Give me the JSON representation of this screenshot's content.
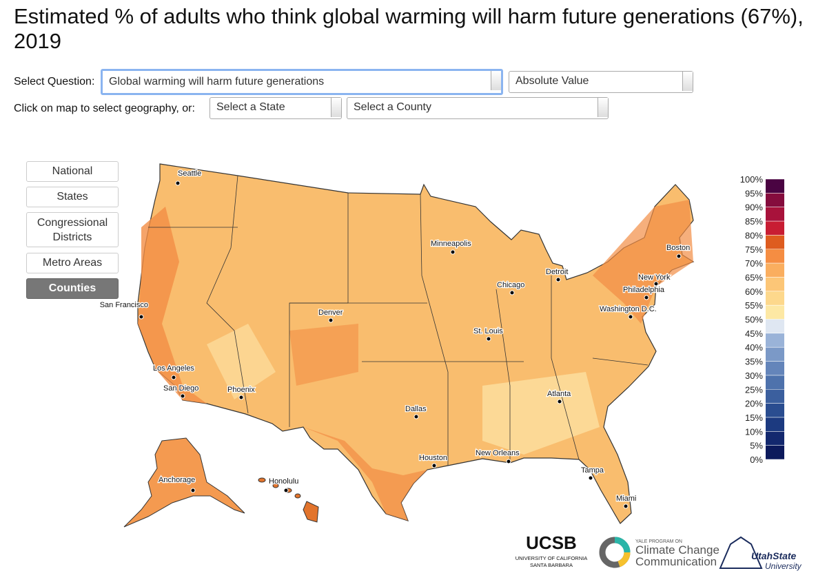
{
  "header": {
    "title": "Estimated % of adults who think global warming will harm future generations (67%), 2019"
  },
  "controls": {
    "question_label": "Select Question:",
    "question": "Global warming will harm future generations",
    "measure": "Absolute Value",
    "geo_label": "Click on map to select geography, or:",
    "state": "Select a State",
    "county": "Select a County"
  },
  "geography_buttons": [
    "National",
    "States",
    "Congressional Districts",
    "Metro Areas",
    "Counties"
  ],
  "active_button": 4,
  "cities": [
    "Seattle",
    "San Francisco",
    "Los Angeles",
    "San Diego",
    "Phoenix",
    "Denver",
    "Dallas",
    "Houston",
    "New Orleans",
    "St. Louis",
    "Chicago",
    "Minneapolis",
    "Detroit",
    "Atlanta",
    "Tampa",
    "Miami",
    "Washington D.C.",
    "Philadelphia",
    "New York",
    "Boston",
    "Anchorage",
    "Honolulu"
  ],
  "legend": {
    "ticks": [
      {
        "value": 0,
        "label": "0%"
      },
      {
        "value": 5,
        "label": "5%"
      },
      {
        "value": 10,
        "label": "10%"
      },
      {
        "value": 15,
        "label": "15%"
      },
      {
        "value": 20,
        "label": "20%"
      },
      {
        "value": 25,
        "label": "25%"
      },
      {
        "value": 30,
        "label": "30%"
      },
      {
        "value": 35,
        "label": "35%"
      },
      {
        "value": 40,
        "label": "40%"
      },
      {
        "value": 45,
        "label": "45%"
      },
      {
        "value": 50,
        "label": "50%"
      },
      {
        "value": 55,
        "label": "55%"
      },
      {
        "value": 60,
        "label": "60%"
      },
      {
        "value": 65,
        "label": "65%"
      },
      {
        "value": 70,
        "label": "70%"
      },
      {
        "value": 75,
        "label": "75%"
      },
      {
        "value": 80,
        "label": "80%"
      },
      {
        "value": 85,
        "label": "85%"
      },
      {
        "value": 90,
        "label": "90%"
      },
      {
        "value": 95,
        "label": "95%"
      },
      {
        "value": 100,
        "label": "100%"
      }
    ],
    "colors": [
      "#0c1a5c",
      "#13286e",
      "#1c3a80",
      "#2a4d90",
      "#3b5f9e",
      "#4e72ac",
      "#6485ba",
      "#7b99c7",
      "#9ab3d8",
      "#dfe7f2",
      "#fde8a4",
      "#fdd88c",
      "#fcc677",
      "#faae5f",
      "#f58d42",
      "#de5c1f",
      "#c81d33",
      "#a8123b",
      "#850c3d",
      "#4a0442"
    ]
  },
  "logos": {
    "ucsb": "UCSB",
    "ucsb_line1": "UNIVERSITY OF CALIFORNIA",
    "ucsb_line2": "SANTA BARBARA",
    "yale_small": "YALE PROGRAM ON",
    "yale_line1": "Climate Change",
    "yale_line2": "Communication",
    "utah_line1": "UtahState",
    "utah_line2": "University"
  }
}
